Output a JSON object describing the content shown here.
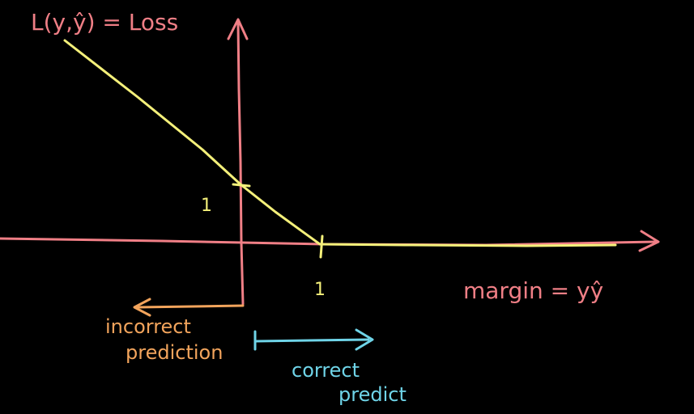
{
  "labels": {
    "loss_axis": "L(y,ŷ) = Loss",
    "margin_axis": "margin = yŷ",
    "tick_y": "1",
    "tick_x": "1",
    "incorrect_line1": "incorrect",
    "incorrect_line2": "prediction",
    "correct_line1": "correct",
    "correct_line2": "predict"
  },
  "colors": {
    "background": "#000000",
    "axis_y": "#f07f86",
    "axis_x": "#f07f86",
    "loss_curve": "#f4f07a",
    "margin_label": "#f07f86",
    "incorrect": "#f2a45c",
    "correct": "#6fd4e8",
    "tick": "#f4f07a"
  }
}
